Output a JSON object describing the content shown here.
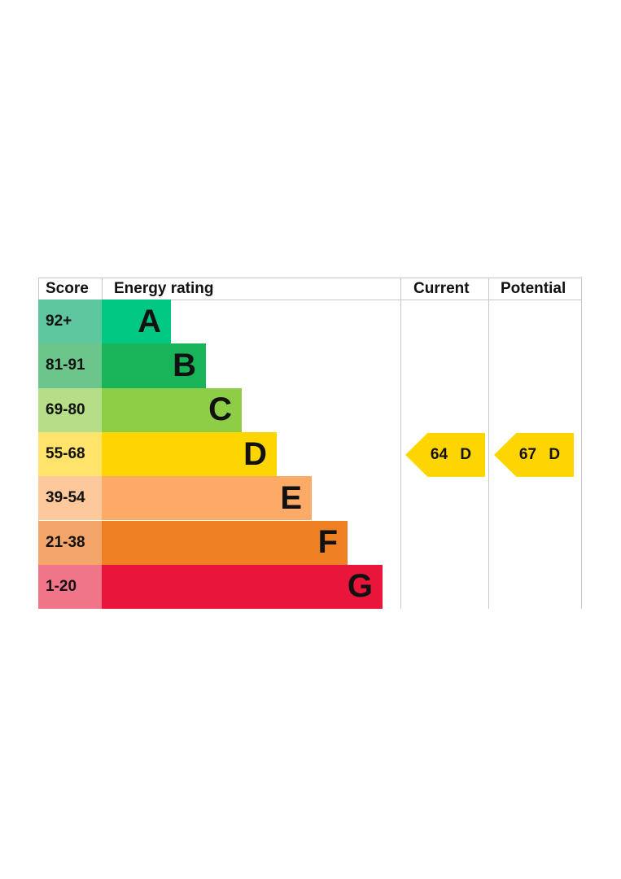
{
  "chart_data": {
    "type": "bar",
    "headers": {
      "score": "Score",
      "rating": "Energy rating",
      "current": "Current",
      "potential": "Potential"
    },
    "bands": [
      {
        "letter": "A",
        "range": "92+",
        "color": "#00c781",
        "score_color": "#5fc79f"
      },
      {
        "letter": "B",
        "range": "81-91",
        "color": "#19b459",
        "score_color": "#6cc68c"
      },
      {
        "letter": "C",
        "range": "69-80",
        "color": "#8dce46",
        "score_color": "#b6de88"
      },
      {
        "letter": "D",
        "range": "55-68",
        "color": "#ffd500",
        "score_color": "#ffe36a"
      },
      {
        "letter": "E",
        "range": "39-54",
        "color": "#fcaa65",
        "score_color": "#fdc99c"
      },
      {
        "letter": "F",
        "range": "21-38",
        "color": "#ef8023",
        "score_color": "#f4a66a"
      },
      {
        "letter": "G",
        "range": "1-20",
        "color": "#e9153b",
        "score_color": "#f07589"
      }
    ],
    "current": {
      "score": 64,
      "band": "D",
      "label": "64 D"
    },
    "potential": {
      "score": 67,
      "band": "D",
      "label": "67 D"
    }
  }
}
